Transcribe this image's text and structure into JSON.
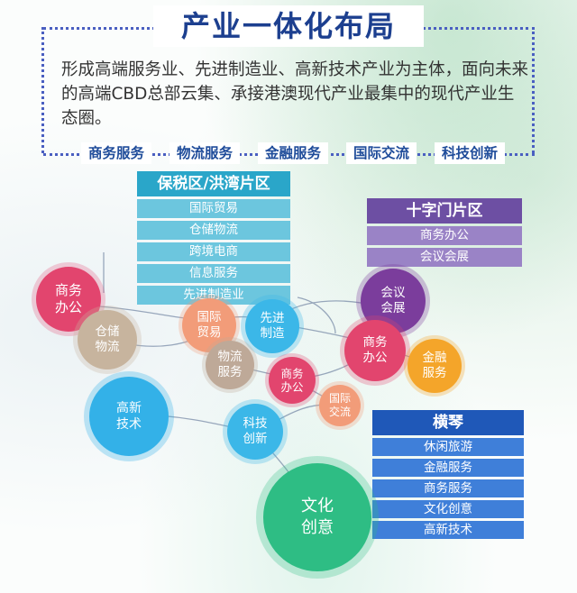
{
  "title": "产业一体化布局",
  "intro": "形成高端服务业、先进制造业、高新技术产业为主体，面向未来的高端CBD总部云集、承接港澳现代产业最集中的现代产业生态圈。",
  "industries": [
    "商务服务",
    "物流服务",
    "金融服务",
    "国际交流",
    "科技创新"
  ],
  "zones": {
    "baoshui": {
      "name": "保税区/洪湾片区",
      "items": [
        "国际贸易",
        "仓储物流",
        "跨境电商",
        "信息服务",
        "先进制造业"
      ]
    },
    "shizi": {
      "name": "十字门片区",
      "items": [
        "商务办公",
        "会议会展"
      ]
    },
    "hengqin": {
      "name": "横琴",
      "items": [
        "休闲旅游",
        "金融服务",
        "商务服务",
        "文化创意",
        "高新技术"
      ]
    }
  },
  "bubbles": {
    "shangwu_left": "商务\n办公",
    "cangchu": "仓储\n物流",
    "guoji_maoyi": "国际\n贸易",
    "xianjin": "先进\n制造",
    "huiyi": "会议\n会展",
    "shangwu_right": "商务\n办公",
    "wuliu": "物流\n服务",
    "shangwu_mid": "商务\n办公",
    "jinrong": "金融\n服务",
    "gaoxin": "高新\n技术",
    "guoji_jiaoliu": "国际\n交流",
    "keji": "科技\n创新",
    "wenhua": "文化\n创意"
  },
  "colors": {
    "title": "#1c3f8f",
    "baoshui": "#2aa6c9",
    "shizi": "#6d4fa3",
    "hengqin": "#1f58b8",
    "dots": "#4a5fc1"
  }
}
